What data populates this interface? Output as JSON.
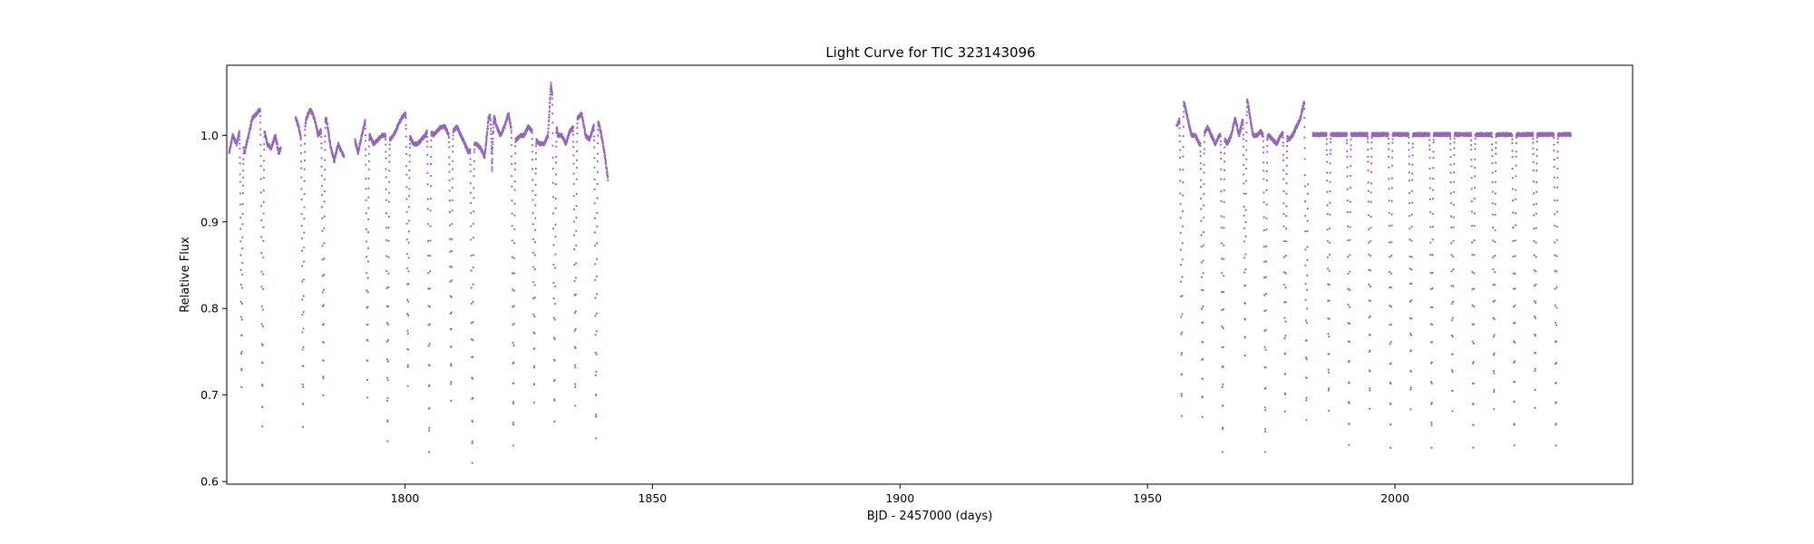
{
  "chart_data": {
    "type": "scatter",
    "title": "Light Curve for TIC 323143096",
    "xlabel": "BJD - 2457000 (days)",
    "ylabel": "Relative Flux",
    "xlim": [
      1764,
      2048
    ],
    "ylim": [
      0.597,
      1.081
    ],
    "x_ticks": [
      1800,
      1850,
      1900,
      1950,
      2000
    ],
    "y_ticks": [
      0.6,
      0.7,
      0.8,
      0.9,
      1.0
    ],
    "x_tick_labels": [
      "1800",
      "1850",
      "1900",
      "1950",
      "2000"
    ],
    "y_tick_labels": [
      "0.6",
      "0.7",
      "0.8",
      "0.9",
      "1.0"
    ],
    "grid": false,
    "legend": "none",
    "marker_color": "#9467bd",
    "segments": [
      {
        "x_range": [
          1764.5,
          1841.0
        ],
        "baseline": [
          [
            1764.5,
            0.98
          ],
          [
            1765.2,
            1.0
          ],
          [
            1766.0,
            0.99
          ],
          [
            1766.8,
            1.01
          ],
          [
            1767.6,
            0.98
          ],
          [
            1768.4,
            1.0
          ],
          [
            1769.2,
            1.02
          ],
          [
            1770.0,
            1.025
          ],
          [
            1770.7,
            1.03
          ],
          [
            1771.5,
            1.01
          ],
          [
            1772.2,
            0.99
          ],
          [
            1773.0,
            0.985
          ],
          [
            1773.8,
            1.0
          ],
          [
            1774.5,
            0.98
          ],
          [
            1775.3,
            0.99
          ],
          [
            1776.1,
            1.01
          ],
          [
            1776.9,
            1.02
          ],
          [
            1777.7,
            1.025
          ],
          [
            1778.5,
            1.01
          ],
          [
            1779.3,
            0.99
          ],
          [
            1780.1,
            1.02
          ],
          [
            1780.9,
            1.03
          ],
          [
            1781.7,
            1.02
          ],
          [
            1782.5,
            1.0
          ],
          [
            1783.3,
            1.01
          ],
          [
            1784.1,
            1.02
          ],
          [
            1784.9,
            0.99
          ],
          [
            1785.7,
            0.97
          ],
          [
            1786.5,
            0.99
          ],
          [
            1787.3,
            0.98
          ],
          [
            1788.1,
            0.97
          ],
          [
            1788.9,
            0.99
          ],
          [
            1789.7,
            1.0
          ],
          [
            1790.5,
            0.98
          ],
          [
            1791.3,
            1.0
          ],
          [
            1792.1,
            1.02
          ],
          [
            1792.9,
            1.0
          ],
          [
            1793.7,
            0.99
          ],
          [
            1794.5,
            0.995
          ],
          [
            1795.3,
            1.0
          ],
          [
            1796.1,
            1.0
          ],
          [
            1796.9,
            0.995
          ],
          [
            1797.7,
            1.0
          ],
          [
            1798.5,
            1.01
          ],
          [
            1799.3,
            1.02
          ],
          [
            1800.1,
            1.025
          ],
          [
            1800.9,
            1.0
          ],
          [
            1801.7,
            0.99
          ],
          [
            1802.5,
            0.99
          ],
          [
            1803.3,
            0.995
          ],
          [
            1804.1,
            1.0
          ],
          [
            1804.9,
            1.01
          ],
          [
            1805.7,
            1.0
          ],
          [
            1806.5,
            1.005
          ],
          [
            1807.3,
            1.01
          ],
          [
            1808.1,
            1.01
          ],
          [
            1808.9,
            1.0
          ],
          [
            1809.7,
            1.005
          ],
          [
            1810.5,
            1.01
          ],
          [
            1811.3,
            1.0
          ],
          [
            1812.1,
            0.99
          ],
          [
            1812.9,
            0.98
          ],
          [
            1813.7,
            0.99
          ],
          [
            1814.5,
            0.99
          ],
          [
            1815.3,
            0.985
          ],
          [
            1816.1,
            0.975
          ],
          [
            1816.9,
            1.02
          ],
          [
            1817.7,
            1.03
          ],
          [
            1818.5,
            1.01
          ],
          [
            1819.3,
            1.0
          ],
          [
            1820.1,
            1.01
          ],
          [
            1820.9,
            1.025
          ],
          [
            1821.7,
            1.0
          ],
          [
            1822.5,
            0.995
          ],
          [
            1823.3,
            1.0
          ],
          [
            1824.1,
            1.0
          ],
          [
            1824.9,
            1.01
          ],
          [
            1825.7,
            1.005
          ],
          [
            1826.5,
            0.995
          ],
          [
            1827.3,
            0.99
          ],
          [
            1828.1,
            0.99
          ],
          [
            1828.9,
            1.0
          ],
          [
            1829.5,
            1.06
          ],
          [
            1830.1,
            1.03
          ],
          [
            1830.9,
            1.0
          ],
          [
            1831.7,
            1.0
          ],
          [
            1832.5,
            0.99
          ],
          [
            1833.3,
            1.005
          ],
          [
            1834.1,
            1.01
          ],
          [
            1834.9,
            1.02
          ],
          [
            1835.7,
            1.025
          ],
          [
            1836.5,
            1.0
          ],
          [
            1837.3,
            0.995
          ],
          [
            1838.1,
            1.01
          ],
          [
            1838.9,
            1.02
          ],
          [
            1839.7,
            1.0
          ],
          [
            1840.3,
            0.98
          ],
          [
            1841.0,
            0.95
          ]
        ],
        "gaps": [
          [
            1774.9,
            1777.9
          ],
          [
            1787.7,
            1789.9
          ]
        ]
      },
      {
        "x_range": [
          1955.9,
          2035.5
        ],
        "baseline": [
          [
            1955.9,
            1.01
          ],
          [
            1956.6,
            1.02
          ],
          [
            1957.3,
            1.04
          ],
          [
            1958.1,
            1.02
          ],
          [
            1958.9,
            1.0
          ],
          [
            1959.7,
            1.0
          ],
          [
            1960.5,
            0.99
          ],
          [
            1961.3,
            1.0
          ],
          [
            1962.1,
            1.01
          ],
          [
            1962.9,
            1.0
          ],
          [
            1963.7,
            0.99
          ],
          [
            1964.5,
            1.0
          ],
          [
            1965.3,
            1.0
          ],
          [
            1966.1,
            0.99
          ],
          [
            1966.9,
            1.0
          ],
          [
            1967.7,
            1.02
          ],
          [
            1968.5,
            1.0
          ],
          [
            1969.3,
            1.02
          ],
          [
            1969.9,
            1.05
          ],
          [
            1970.5,
            1.03
          ],
          [
            1971.3,
            1.0
          ],
          [
            1972.1,
            1.0
          ],
          [
            1972.9,
            1.005
          ],
          [
            1973.7,
            0.995
          ],
          [
            1974.5,
            1.0
          ],
          [
            1975.3,
            0.995
          ],
          [
            1976.1,
            0.99
          ],
          [
            1976.9,
            1.0
          ],
          [
            1977.7,
            1.005
          ],
          [
            1978.5,
            0.995
          ],
          [
            1979.3,
            1.0
          ],
          [
            1980.1,
            1.01
          ],
          [
            1980.9,
            1.02
          ],
          [
            1981.7,
            1.04
          ],
          [
            1982.3,
            1.0
          ],
          [
            1983.5,
            1.001
          ],
          [
            2035.5,
            1.001
          ]
        ],
        "gaps": [
          [
            1982.4,
            1983.4
          ]
        ]
      }
    ],
    "eclipses": [
      {
        "t": 1767.0,
        "depth": 0.709,
        "width": 0.9
      },
      {
        "t": 1771.2,
        "depth": 0.663,
        "width": 0.9
      },
      {
        "t": 1779.4,
        "depth": 0.665,
        "width": 0.9
      },
      {
        "t": 1783.5,
        "depth": 0.698,
        "width": 0.9
      },
      {
        "t": 1792.4,
        "depth": 0.697,
        "width": 0.9
      },
      {
        "t": 1796.5,
        "depth": 0.646,
        "width": 0.9
      },
      {
        "t": 1800.6,
        "depth": 0.712,
        "width": 0.9
      },
      {
        "t": 1804.9,
        "depth": 0.634,
        "width": 0.9
      },
      {
        "t": 1809.3,
        "depth": 0.692,
        "width": 0.9
      },
      {
        "t": 1813.6,
        "depth": 0.62,
        "width": 0.9
      },
      {
        "t": 1817.6,
        "depth": 0.958,
        "width": 0.9
      },
      {
        "t": 1821.9,
        "depth": 0.641,
        "width": 0.9
      },
      {
        "t": 1826.1,
        "depth": 0.69,
        "width": 0.9
      },
      {
        "t": 1830.2,
        "depth": 0.668,
        "width": 0.9
      },
      {
        "t": 1834.4,
        "depth": 0.688,
        "width": 0.9
      },
      {
        "t": 1838.6,
        "depth": 0.65,
        "width": 0.9
      },
      {
        "t": 1956.9,
        "depth": 0.675,
        "width": 0.9
      },
      {
        "t": 1961.1,
        "depth": 0.676,
        "width": 0.9
      },
      {
        "t": 1965.2,
        "depth": 0.636,
        "width": 0.9
      },
      {
        "t": 1969.7,
        "depth": 0.747,
        "width": 0.9
      },
      {
        "t": 1973.8,
        "depth": 0.634,
        "width": 0.9
      },
      {
        "t": 1977.8,
        "depth": 0.68,
        "width": 0.9
      },
      {
        "t": 1982.1,
        "depth": 0.671,
        "width": 0.9
      },
      {
        "t": 1986.6,
        "depth": 0.684,
        "width": 0.9
      },
      {
        "t": 1990.7,
        "depth": 0.641,
        "width": 0.9
      },
      {
        "t": 1994.9,
        "depth": 0.685,
        "width": 0.9
      },
      {
        "t": 1999.1,
        "depth": 0.641,
        "width": 0.9
      },
      {
        "t": 2003.2,
        "depth": 0.685,
        "width": 0.9
      },
      {
        "t": 2007.4,
        "depth": 0.641,
        "width": 0.9
      },
      {
        "t": 2011.6,
        "depth": 0.683,
        "width": 0.9
      },
      {
        "t": 2015.8,
        "depth": 0.641,
        "width": 0.9
      },
      {
        "t": 2020.0,
        "depth": 0.683,
        "width": 0.9
      },
      {
        "t": 2024.1,
        "depth": 0.641,
        "width": 0.9
      },
      {
        "t": 2028.3,
        "depth": 0.685,
        "width": 0.9
      },
      {
        "t": 2032.5,
        "depth": 0.641,
        "width": 0.9
      }
    ]
  }
}
